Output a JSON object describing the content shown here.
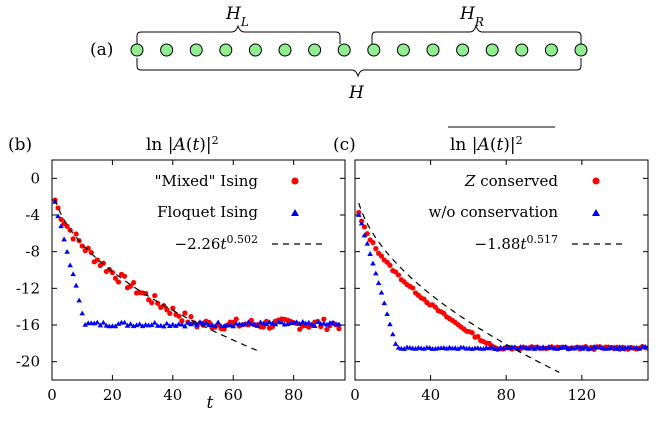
{
  "panel_a": {
    "label": "(a)",
    "left_label": "H_L",
    "right_label": "H_R",
    "full_label": "H",
    "num_sites": 16,
    "site_color": "#90ee90"
  },
  "chart_data": [
    {
      "type": "scatter",
      "panel_label": "(b)",
      "title": "ln |A(t)|²",
      "xlabel": "t",
      "ylabel": "",
      "xlim": [
        0,
        97
      ],
      "ylim": [
        -22,
        2
      ],
      "x_ticks": [
        0,
        20,
        40,
        60,
        80
      ],
      "y_ticks": [
        0,
        -4,
        -8,
        -12,
        -16,
        -20
      ],
      "y_tick_labels": [
        "0",
        "-4",
        "-8",
        "-12",
        "-16",
        "-20"
      ],
      "legend_position": "top-right",
      "series": [
        {
          "name": "\"Mixed\" Ising",
          "marker": "circle",
          "color": "#ff0000",
          "start": -1.5,
          "plateau": -15.9,
          "scale": 2.26,
          "exponent": 0.502,
          "x_range": [
            1,
            95
          ],
          "step": 1,
          "noise": 0.6
        },
        {
          "name": "Floquet Ising",
          "marker": "triangle",
          "color": "#0000ff",
          "start": -1.5,
          "plateau": -15.9,
          "slope": -1.3,
          "x_range": [
            1,
            95
          ],
          "step": 1,
          "noise": 0.25
        },
        {
          "name": "−2.26t^0.502",
          "line": "dashed",
          "color": "#000000",
          "coef": -2.26,
          "exponent": 0.502,
          "x_range": [
            1,
            68
          ]
        }
      ]
    },
    {
      "type": "scatter",
      "panel_label": "(c)",
      "title": "ln |A(t)|² (overline)",
      "xlabel": "",
      "ylabel": "",
      "xlim": [
        0,
        155
      ],
      "ylim": [
        -22,
        2
      ],
      "x_ticks": [
        0,
        40,
        80,
        120
      ],
      "y_ticks": [
        0,
        -4,
        -8,
        -12,
        -16,
        -20
      ],
      "legend_position": "top-right",
      "series": [
        {
          "name": "Z conserved",
          "marker": "circle",
          "color": "#ff0000",
          "start": -2.5,
          "plateau": -18.5,
          "scale": 1.88,
          "exponent": 0.517,
          "x_range": [
            2,
            155
          ],
          "step": 1.5,
          "noise": 0.15
        },
        {
          "name": "w/o conservation",
          "marker": "triangle",
          "color": "#0000ff",
          "start": -2.5,
          "plateau": -18.5,
          "slope": -0.72,
          "x_range": [
            2,
            155
          ],
          "step": 1.5,
          "noise": 0.12
        },
        {
          "name": "−1.88t^0.517",
          "line": "dashed",
          "color": "#000000",
          "coef": -1.88,
          "exponent": 0.517,
          "x_range": [
            2,
            108
          ]
        }
      ]
    }
  ]
}
